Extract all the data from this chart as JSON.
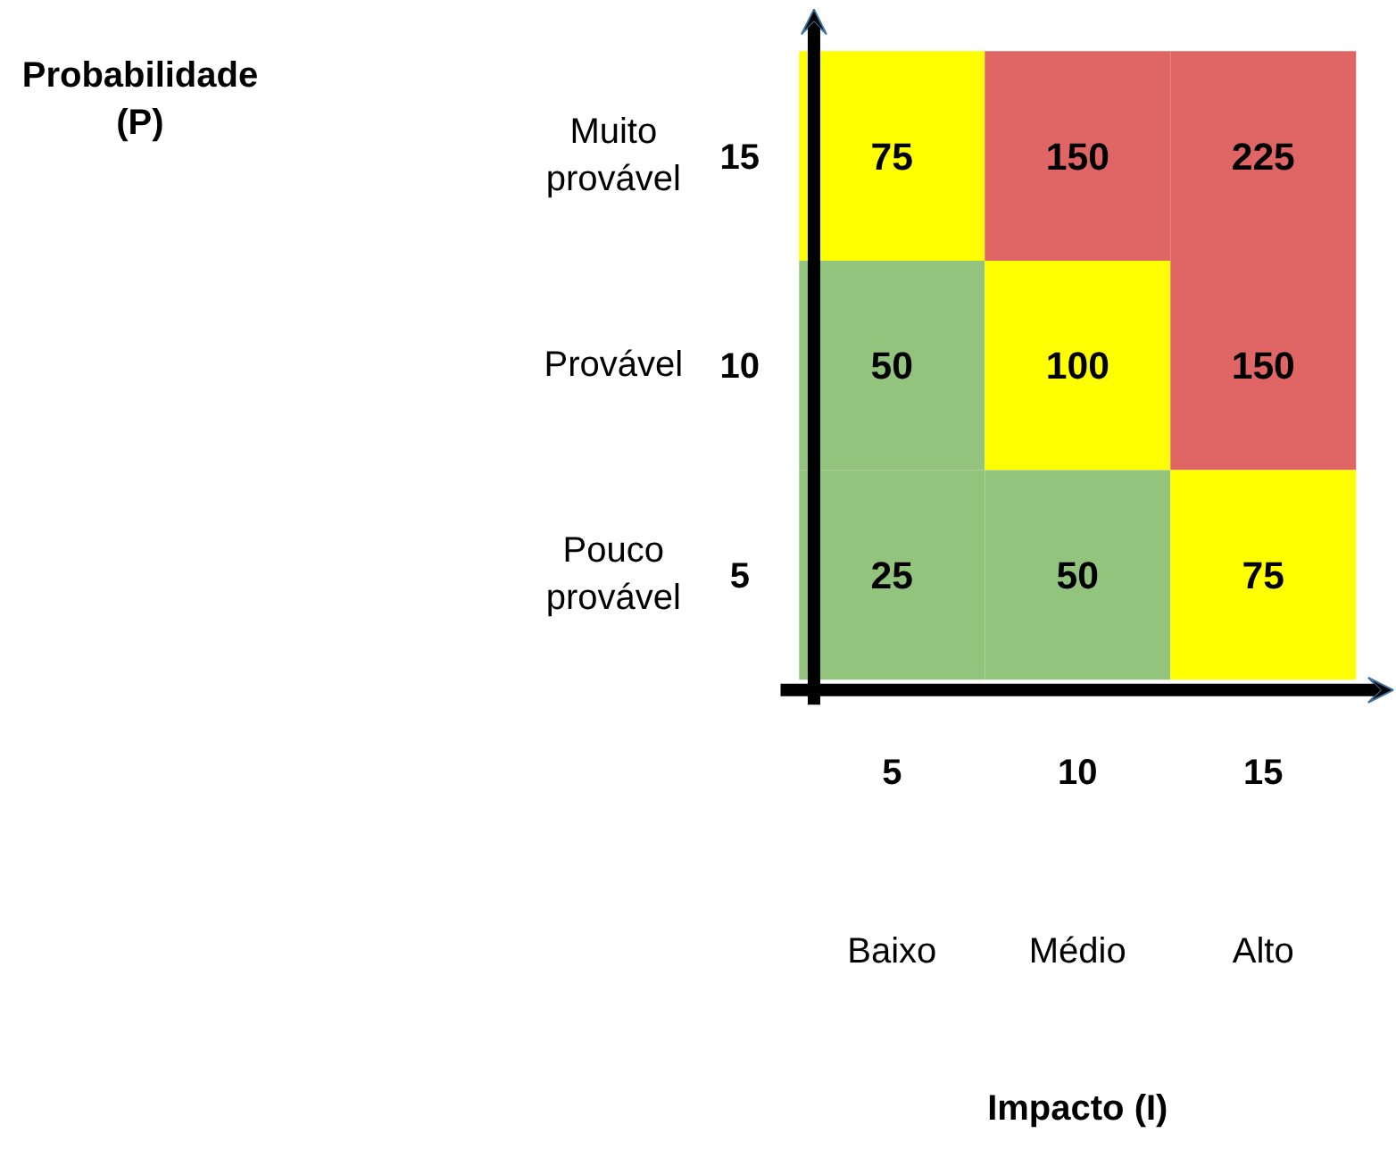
{
  "chart_data": {
    "type": "heatmap",
    "categories": [
      "5",
      "10",
      "15"
    ],
    "y_categories": [
      "15",
      "10",
      "5"
    ],
    "y2_categories": [
      "Muito provável",
      "Provável",
      "Pouco provável"
    ],
    "cells": [
      [
        75,
        150,
        225
      ],
      [
        50,
        100,
        150
      ],
      [
        25,
        50,
        75
      ]
    ],
    "colors": [
      [
        "#ffff00",
        "#e06666",
        "#e06666"
      ],
      [
        "#93c47d",
        "#ffff00",
        "#e06666"
      ],
      [
        "#93c47d",
        "#93c47d",
        "#ffff00"
      ]
    ],
    "data_labels": true,
    "annotations": [
      "Baixo",
      "Médio",
      "Alto",
      "Impacto (I)",
      "Probabilidade (P)"
    ]
  }
}
